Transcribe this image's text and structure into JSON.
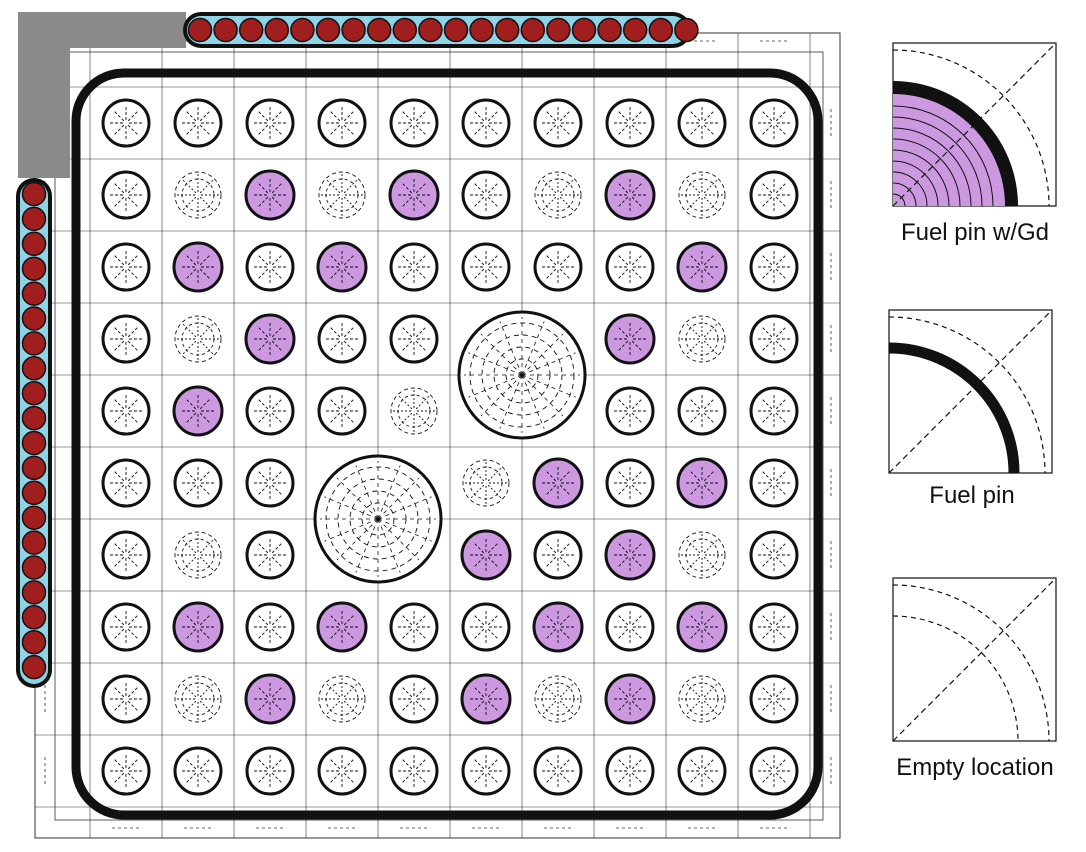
{
  "lattice": {
    "rows": [
      "FFFFFFFFFF",
      "FEGEGFEGEF",
      "FGFGFFFFGF",
      "FEGFFWWGEF",
      "FGFFEWWFFF",
      "FFFWWEGFGF",
      "FEFWWGFGEF",
      "FGFGFFGFGF",
      "FEGEFGEGEF",
      "FFFFFFFFFF"
    ],
    "water_rods": [
      {
        "row": 3,
        "col": 5
      },
      {
        "row": 5,
        "col": 3
      }
    ],
    "control_blade": {
      "top_blades": 20,
      "side_blades": 20
    }
  },
  "legend": [
    {
      "kind": "gd",
      "label": "Fuel pin w/Gd"
    },
    {
      "kind": "fuel",
      "label": "Fuel pin"
    },
    {
      "kind": "empty",
      "label": "Empty location"
    }
  ],
  "colors": {
    "gd_fill": "#cc99e0",
    "blade_absorber": "#a01e1e",
    "blade_gap": "#8fd3e6",
    "blade_sheath": "#8a8a8a",
    "line": "#111111",
    "mesh": "#333333"
  }
}
